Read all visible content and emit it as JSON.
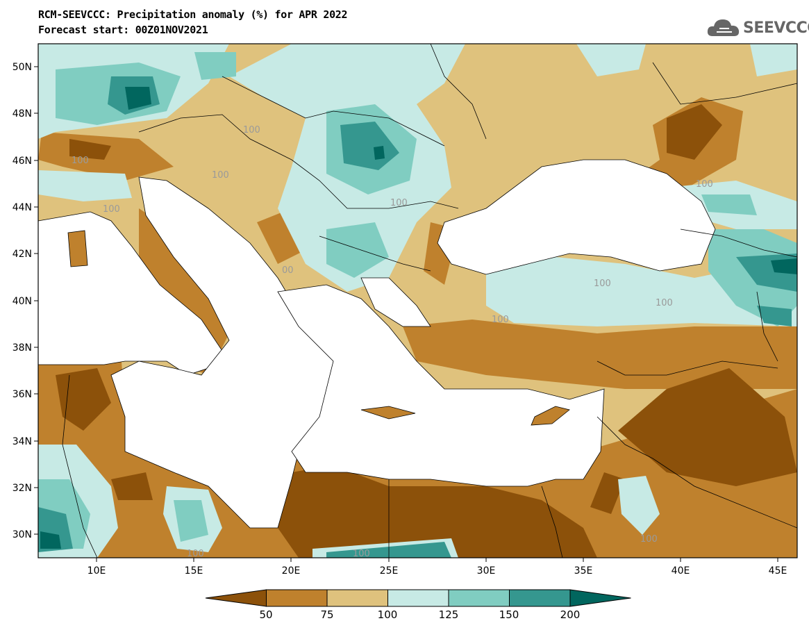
{
  "header": {
    "title_line1": "RCM-SEEVCCC: Precipitation anomaly (%) for APR 2022",
    "title_line2": "Forecast start: 00Z01NOV2021"
  },
  "logo": {
    "text": "SEEVCCC",
    "icon": "cloud-icon",
    "color": "#666666"
  },
  "map": {
    "projection": "lat-lon",
    "lon_range": [
      7,
      46
    ],
    "lat_range": [
      29,
      51
    ],
    "lon_ticks": [
      "10E",
      "15E",
      "20E",
      "25E",
      "30E",
      "35E",
      "40E",
      "45E"
    ],
    "lat_ticks": [
      "30N",
      "32N",
      "34N",
      "36N",
      "38N",
      "40N",
      "42N",
      "44N",
      "46N",
      "48N",
      "50N"
    ],
    "contour_labels": [
      "100",
      "100",
      "100",
      "100",
      "100",
      "100",
      "100",
      "100",
      "100",
      "100",
      "100",
      "100",
      "00"
    ]
  },
  "colorbar": {
    "boundaries": [
      "50",
      "75",
      "100",
      "125",
      "150",
      "200"
    ],
    "colors": [
      "#8c510a",
      "#bf812d",
      "#dfc27d",
      "#c7eae5",
      "#80cdc1",
      "#35978f",
      "#01665e"
    ]
  }
}
